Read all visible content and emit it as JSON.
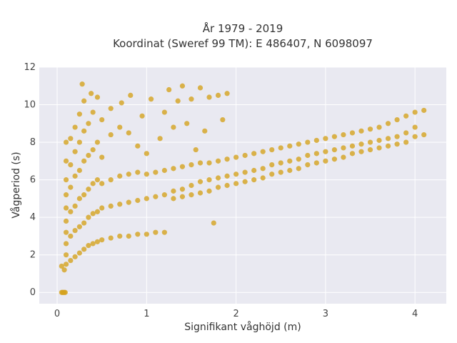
{
  "chart_data": {
    "type": "scatter",
    "title_line1": "År 1979 - 2019",
    "title_line2": "Koordinat (Sweref 99 TM): E 486407, N 6098097",
    "xlabel": "Signifikant våghöjd (m)",
    "ylabel": "Vågperiod (s)",
    "xlim": [
      -0.2,
      4.35
    ],
    "ylim": [
      -0.6,
      12
    ],
    "x_ticks": [
      0,
      1,
      2,
      3,
      4
    ],
    "y_ticks": [
      0,
      2,
      4,
      6,
      8,
      10,
      12
    ],
    "x_tick_labels": [
      "0",
      "1",
      "2",
      "3",
      "4"
    ],
    "y_tick_labels": [
      "0",
      "2",
      "4",
      "6",
      "8",
      "10",
      "12"
    ],
    "grid": true,
    "legend": "none",
    "colors": {
      "marker": "#d4a21f",
      "background": "#e9e9f1",
      "grid": "#ffffff"
    },
    "series": [
      {
        "points": [
          [
            0.05,
            0.0
          ],
          [
            0.06,
            0.0
          ],
          [
            0.07,
            0.0
          ],
          [
            0.08,
            0.0
          ],
          [
            0.09,
            0.0
          ],
          [
            0.05,
            1.4
          ],
          [
            0.08,
            1.2
          ],
          [
            0.1,
            1.5
          ],
          [
            0.1,
            2.0
          ],
          [
            0.1,
            2.6
          ],
          [
            0.1,
            3.2
          ],
          [
            0.1,
            3.8
          ],
          [
            0.1,
            4.5
          ],
          [
            0.1,
            5.2
          ],
          [
            0.1,
            6.0
          ],
          [
            0.1,
            7.0
          ],
          [
            0.1,
            8.0
          ],
          [
            0.15,
            1.7
          ],
          [
            0.15,
            3.0
          ],
          [
            0.15,
            4.3
          ],
          [
            0.15,
            5.6
          ],
          [
            0.15,
            6.8
          ],
          [
            0.15,
            8.2
          ],
          [
            0.2,
            1.9
          ],
          [
            0.2,
            3.3
          ],
          [
            0.2,
            4.6
          ],
          [
            0.2,
            6.2
          ],
          [
            0.2,
            7.5
          ],
          [
            0.2,
            8.8
          ],
          [
            0.25,
            2.1
          ],
          [
            0.25,
            3.5
          ],
          [
            0.25,
            5.0
          ],
          [
            0.25,
            6.5
          ],
          [
            0.25,
            8.0
          ],
          [
            0.25,
            9.5
          ],
          [
            0.3,
            2.3
          ],
          [
            0.3,
            3.7
          ],
          [
            0.3,
            5.2
          ],
          [
            0.3,
            7.0
          ],
          [
            0.3,
            8.6
          ],
          [
            0.3,
            10.2
          ],
          [
            0.28,
            11.1
          ],
          [
            0.35,
            2.5
          ],
          [
            0.35,
            4.0
          ],
          [
            0.35,
            5.5
          ],
          [
            0.35,
            7.3
          ],
          [
            0.35,
            9.0
          ],
          [
            0.4,
            2.6
          ],
          [
            0.4,
            4.2
          ],
          [
            0.4,
            5.8
          ],
          [
            0.4,
            7.6
          ],
          [
            0.4,
            9.6
          ],
          [
            0.38,
            10.6
          ],
          [
            0.45,
            2.7
          ],
          [
            0.45,
            4.3
          ],
          [
            0.45,
            6.0
          ],
          [
            0.45,
            8.0
          ],
          [
            0.45,
            10.4
          ],
          [
            0.5,
            2.8
          ],
          [
            0.5,
            4.5
          ],
          [
            0.5,
            5.8
          ],
          [
            0.5,
            7.2
          ],
          [
            0.5,
            9.2
          ],
          [
            0.6,
            2.9
          ],
          [
            0.6,
            4.6
          ],
          [
            0.6,
            6.0
          ],
          [
            0.6,
            8.4
          ],
          [
            0.6,
            9.8
          ],
          [
            0.7,
            3.0
          ],
          [
            0.7,
            4.7
          ],
          [
            0.7,
            6.2
          ],
          [
            0.7,
            8.8
          ],
          [
            0.72,
            10.1
          ],
          [
            0.8,
            3.0
          ],
          [
            0.8,
            4.8
          ],
          [
            0.8,
            6.3
          ],
          [
            0.8,
            8.5
          ],
          [
            0.82,
            10.5
          ],
          [
            0.9,
            3.1
          ],
          [
            0.9,
            4.9
          ],
          [
            0.9,
            6.4
          ],
          [
            0.9,
            7.8
          ],
          [
            0.95,
            9.4
          ],
          [
            1.0,
            3.1
          ],
          [
            1.0,
            5.0
          ],
          [
            1.0,
            6.3
          ],
          [
            1.0,
            7.4
          ],
          [
            1.05,
            10.3
          ],
          [
            1.1,
            3.2
          ],
          [
            1.1,
            5.1
          ],
          [
            1.1,
            6.4
          ],
          [
            1.15,
            8.2
          ],
          [
            1.2,
            9.6
          ],
          [
            1.2,
            3.2
          ],
          [
            1.2,
            5.2
          ],
          [
            1.2,
            6.5
          ],
          [
            1.25,
            10.8
          ],
          [
            1.3,
            8.8
          ],
          [
            1.3,
            5.0
          ],
          [
            1.3,
            5.4
          ],
          [
            1.3,
            6.6
          ],
          [
            1.35,
            10.2
          ],
          [
            1.4,
            11.0
          ],
          [
            1.4,
            5.1
          ],
          [
            1.4,
            5.5
          ],
          [
            1.4,
            6.7
          ],
          [
            1.45,
            9.0
          ],
          [
            1.5,
            10.3
          ],
          [
            1.5,
            5.2
          ],
          [
            1.5,
            5.7
          ],
          [
            1.5,
            6.8
          ],
          [
            1.55,
            7.6
          ],
          [
            1.6,
            10.9
          ],
          [
            1.6,
            5.3
          ],
          [
            1.6,
            5.9
          ],
          [
            1.6,
            6.9
          ],
          [
            1.65,
            8.6
          ],
          [
            1.7,
            10.4
          ],
          [
            1.7,
            5.4
          ],
          [
            1.7,
            6.0
          ],
          [
            1.7,
            6.9
          ],
          [
            1.75,
            3.7
          ],
          [
            1.8,
            10.5
          ],
          [
            1.8,
            5.6
          ],
          [
            1.8,
            6.1
          ],
          [
            1.8,
            7.0
          ],
          [
            1.85,
            9.2
          ],
          [
            1.9,
            10.6
          ],
          [
            1.9,
            5.7
          ],
          [
            1.9,
            6.2
          ],
          [
            1.9,
            7.1
          ],
          [
            2.0,
            5.8
          ],
          [
            2.0,
            6.3
          ],
          [
            2.0,
            7.2
          ],
          [
            2.1,
            5.9
          ],
          [
            2.1,
            6.4
          ],
          [
            2.1,
            7.3
          ],
          [
            2.2,
            6.0
          ],
          [
            2.2,
            6.5
          ],
          [
            2.2,
            7.4
          ],
          [
            2.3,
            6.1
          ],
          [
            2.3,
            6.6
          ],
          [
            2.3,
            7.5
          ],
          [
            2.4,
            6.3
          ],
          [
            2.4,
            6.8
          ],
          [
            2.4,
            7.6
          ],
          [
            2.5,
            6.4
          ],
          [
            2.5,
            6.9
          ],
          [
            2.5,
            7.7
          ],
          [
            2.6,
            6.5
          ],
          [
            2.6,
            7.0
          ],
          [
            2.6,
            7.8
          ],
          [
            2.7,
            6.6
          ],
          [
            2.7,
            7.1
          ],
          [
            2.7,
            7.9
          ],
          [
            2.8,
            6.8
          ],
          [
            2.8,
            7.3
          ],
          [
            2.8,
            8.0
          ],
          [
            2.9,
            6.9
          ],
          [
            2.9,
            7.4
          ],
          [
            2.9,
            8.1
          ],
          [
            3.0,
            7.0
          ],
          [
            3.0,
            7.5
          ],
          [
            3.0,
            8.2
          ],
          [
            3.1,
            7.1
          ],
          [
            3.1,
            7.6
          ],
          [
            3.1,
            8.3
          ],
          [
            3.2,
            7.2
          ],
          [
            3.2,
            7.7
          ],
          [
            3.2,
            8.4
          ],
          [
            3.3,
            7.4
          ],
          [
            3.3,
            7.8
          ],
          [
            3.3,
            8.5
          ],
          [
            3.4,
            7.5
          ],
          [
            3.4,
            7.9
          ],
          [
            3.4,
            8.6
          ],
          [
            3.5,
            7.6
          ],
          [
            3.5,
            8.0
          ],
          [
            3.5,
            8.7
          ],
          [
            3.6,
            7.7
          ],
          [
            3.6,
            8.1
          ],
          [
            3.6,
            8.8
          ],
          [
            3.7,
            7.8
          ],
          [
            3.7,
            8.2
          ],
          [
            3.7,
            9.0
          ],
          [
            3.8,
            7.9
          ],
          [
            3.8,
            8.3
          ],
          [
            3.8,
            9.2
          ],
          [
            3.9,
            8.0
          ],
          [
            3.9,
            8.5
          ],
          [
            3.9,
            9.4
          ],
          [
            4.0,
            8.3
          ],
          [
            4.0,
            8.8
          ],
          [
            4.0,
            9.6
          ],
          [
            4.1,
            8.4
          ],
          [
            4.1,
            9.7
          ]
        ]
      }
    ]
  }
}
